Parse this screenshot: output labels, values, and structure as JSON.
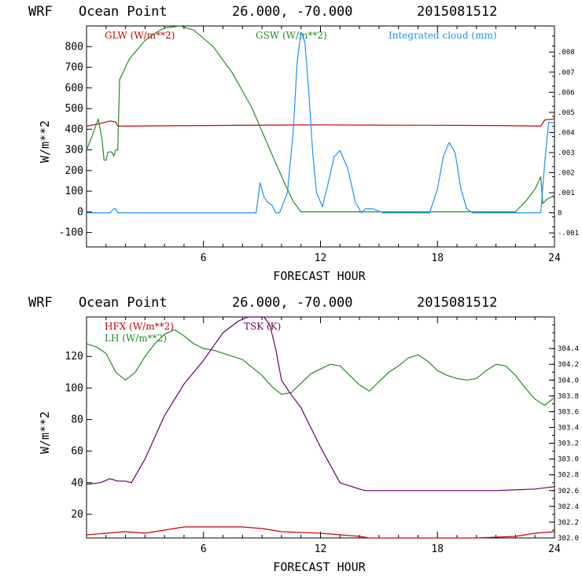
{
  "chart_data": [
    {
      "type": "line",
      "header": [
        "WRF",
        "Ocean Point",
        "26.000, -70.000",
        "2015081512"
      ],
      "xlabel": "FORECAST HOUR",
      "ylabel": "W/m**2",
      "xlim": [
        0,
        24
      ],
      "ylim": [
        -170,
        900
      ],
      "xticks": [
        "6",
        "12",
        "18",
        "24"
      ],
      "yticks": [
        "-100",
        "0",
        "100",
        "200",
        "300",
        "400",
        "500",
        "600",
        "700",
        "800"
      ],
      "right_ylim": [
        -0.0017,
        0.0093
      ],
      "right_ticks": [
        "-.001",
        "0",
        ".001",
        ".002",
        ".003",
        ".004",
        ".005",
        ".006",
        ".007",
        ".008"
      ],
      "colors": {
        "GLW": "#cc0000",
        "GSW": "#228b22",
        "CLOUD": "#1e90ff"
      },
      "series": [
        {
          "name": "GLW (W/m**2)",
          "color": "#cc0000",
          "x": [
            0,
            0.6,
            1.2,
            1.5,
            1.6,
            6,
            9,
            12,
            15,
            18,
            21,
            23.3,
            23.5,
            24
          ],
          "values": [
            415,
            425,
            440,
            435,
            415,
            418,
            420,
            421,
            420,
            419,
            418,
            415,
            445,
            450
          ]
        },
        {
          "name": "GSW (W/m**2)",
          "color": "#228b22",
          "x": [
            0,
            0.3,
            0.6,
            0.8,
            0.9,
            1.0,
            1.1,
            1.3,
            1.4,
            1.5,
            1.6,
            1.7,
            2.2,
            3,
            3.6,
            4,
            4.8,
            5.5,
            6.5,
            7.5,
            8.5,
            9.5,
            10.2,
            10.6,
            11,
            14,
            18,
            22,
            22.2,
            22.6,
            23,
            23.3,
            23.4,
            23.6,
            23.8,
            24
          ],
          "values": [
            300,
            370,
            450,
            350,
            250,
            250,
            290,
            290,
            270,
            300,
            300,
            640,
            740,
            830,
            870,
            890,
            900,
            880,
            800,
            670,
            500,
            280,
            130,
            50,
            0,
            0,
            0,
            0,
            20,
            60,
            110,
            170,
            40,
            60,
            70,
            80
          ]
        },
        {
          "name": "Integrated cloud (mm)",
          "color": "#1e90ff",
          "x": [
            0,
            1.2,
            1.4,
            1.5,
            1.6,
            8.7,
            8.9,
            9.1,
            9.3,
            9.5,
            9.7,
            9.9,
            10.3,
            10.6,
            10.8,
            11.0,
            11.2,
            11.4,
            11.6,
            11.8,
            12.1,
            12.4,
            12.7,
            13.0,
            13.4,
            13.8,
            14.1,
            14.3,
            14.7,
            15.2,
            15.6,
            17.6,
            18.0,
            18.3,
            18.6,
            18.9,
            19.2,
            19.5,
            19.8,
            20.1,
            23.3,
            23.5,
            23.7,
            24
          ],
          "values": [
            0.0,
            0.0,
            0.0002,
            0.0002,
            0.0,
            0.0,
            0.0015,
            0.0008,
            0.0005,
            0.0004,
            0.0,
            0.0,
            0.001,
            0.004,
            0.0075,
            0.009,
            0.0085,
            0.006,
            0.003,
            0.001,
            0.0003,
            0.0015,
            0.0028,
            0.0031,
            0.0022,
            0.0005,
            0.0,
            0.0002,
            0.0002,
            0.0,
            0.0,
            0.0,
            0.0012,
            0.0028,
            0.0035,
            0.003,
            0.0012,
            0.0002,
            0.0,
            0.0,
            0.0,
            0.0025,
            0.0045,
            0.0045
          ]
        }
      ]
    },
    {
      "type": "line",
      "header": [
        "WRF",
        "Ocean Point",
        "26.000, -70.000",
        "2015081512"
      ],
      "xlabel": "FORECAST HOUR",
      "ylabel": "W/m**2",
      "xlim": [
        0,
        24
      ],
      "ylim": [
        5,
        145
      ],
      "xticks": [
        "6",
        "12",
        "18",
        "24"
      ],
      "yticks": [
        "20",
        "40",
        "60",
        "80",
        "100",
        "120"
      ],
      "right_ylim": [
        302.0,
        304.8
      ],
      "right_ticks": [
        "302.0",
        "302.2",
        "302.4",
        "302.6",
        "302.8",
        "303.0",
        "303.2",
        "303.4",
        "303.6",
        "303.8",
        "304.0",
        "304.2",
        "304.4"
      ],
      "colors": {
        "HFX": "#cc0000",
        "LH": "#228b22",
        "TSK": "#660066"
      },
      "series": [
        {
          "name": "HFX (W/m**2)",
          "color": "#cc0000",
          "x": [
            0,
            1,
            2,
            3,
            4,
            5,
            6,
            8,
            9,
            10,
            12,
            13,
            14,
            14.5,
            17,
            20,
            22,
            23,
            24
          ],
          "values": [
            7,
            8,
            9,
            8,
            10,
            12,
            12,
            12,
            11,
            9,
            8,
            7,
            6,
            5,
            5,
            5,
            6,
            8,
            9
          ]
        },
        {
          "name": "LH (W/m**2)",
          "color": "#228b22",
          "x": [
            0,
            0.5,
            1,
            1.5,
            2,
            2.5,
            3,
            3.5,
            4,
            4.5,
            5,
            5.5,
            6,
            6.5,
            7,
            7.5,
            8,
            8.5,
            9,
            9.5,
            10,
            10.5,
            11,
            11.5,
            12,
            12.5,
            13,
            13.5,
            14,
            14.5,
            15,
            15.5,
            16,
            16.5,
            17,
            17.5,
            18,
            18.5,
            19,
            19.5,
            20,
            20.5,
            21,
            21.5,
            22,
            22.5,
            23,
            23.5,
            24
          ],
          "values": [
            128,
            126,
            122,
            110,
            105,
            110,
            120,
            128,
            134,
            137,
            133,
            128,
            125,
            124,
            122,
            120,
            118,
            113,
            108,
            101,
            96,
            97,
            103,
            109,
            112,
            115,
            114,
            108,
            102,
            98,
            104,
            110,
            114,
            119,
            121,
            117,
            111,
            108,
            106,
            105,
            106,
            111,
            115,
            114,
            108,
            100,
            93,
            89,
            94
          ]
        },
        {
          "name": "TSK (K)",
          "color": "#660066",
          "x": [
            0,
            0.7,
            1.2,
            1.6,
            2,
            2.3,
            3,
            4,
            5,
            6,
            7,
            7.8,
            8.3,
            8.7,
            9.1,
            9.4,
            9.7,
            10.0,
            10.4,
            11,
            12,
            13,
            14,
            14.3,
            14.7,
            18,
            21,
            23,
            24
          ],
          "values": [
            302.68,
            302.7,
            302.75,
            302.72,
            302.72,
            302.7,
            303.0,
            303.55,
            303.95,
            304.25,
            304.6,
            304.75,
            304.82,
            304.85,
            304.83,
            304.7,
            304.4,
            304.0,
            303.85,
            303.65,
            303.15,
            302.7,
            302.62,
            302.6,
            302.6,
            302.6,
            302.6,
            302.62,
            302.65
          ]
        }
      ]
    }
  ]
}
